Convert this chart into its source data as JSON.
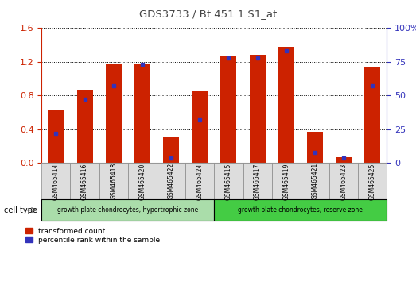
{
  "title": "GDS3733 / Bt.451.1.S1_at",
  "samples": [
    "GSM465414",
    "GSM465416",
    "GSM465418",
    "GSM465420",
    "GSM465422",
    "GSM465424",
    "GSM465415",
    "GSM465417",
    "GSM465419",
    "GSM465421",
    "GSM465423",
    "GSM465425"
  ],
  "red_values": [
    0.63,
    0.86,
    1.18,
    1.18,
    0.3,
    0.85,
    1.27,
    1.28,
    1.38,
    0.37,
    0.07,
    1.14
  ],
  "blue_percentiles": [
    22,
    47,
    57,
    73,
    4,
    32,
    78,
    78,
    83,
    8,
    4,
    57
  ],
  "group1_label": "growth plate chondrocytes, hypertrophic zone",
  "group2_label": "growth plate chondrocytes, reserve zone",
  "group1_count": 6,
  "group2_count": 6,
  "ylim_left": [
    0,
    1.6
  ],
  "ylim_right": [
    0,
    100
  ],
  "yticks_left": [
    0,
    0.4,
    0.8,
    1.2,
    1.6
  ],
  "yticks_right": [
    0,
    25,
    50,
    75,
    100
  ],
  "ytick_labels_right": [
    "0",
    "25",
    "50",
    "75",
    "100%"
  ],
  "bar_color": "#cc2200",
  "blue_color": "#3333bb",
  "group1_color": "#aaddaa",
  "group2_color": "#44cc44",
  "bg_color": "#ffffff",
  "plot_bg": "#ffffff",
  "legend_red_label": "transformed count",
  "legend_blue_label": "percentile rank within the sample",
  "cell_type_label": "cell type",
  "bar_width": 0.55
}
